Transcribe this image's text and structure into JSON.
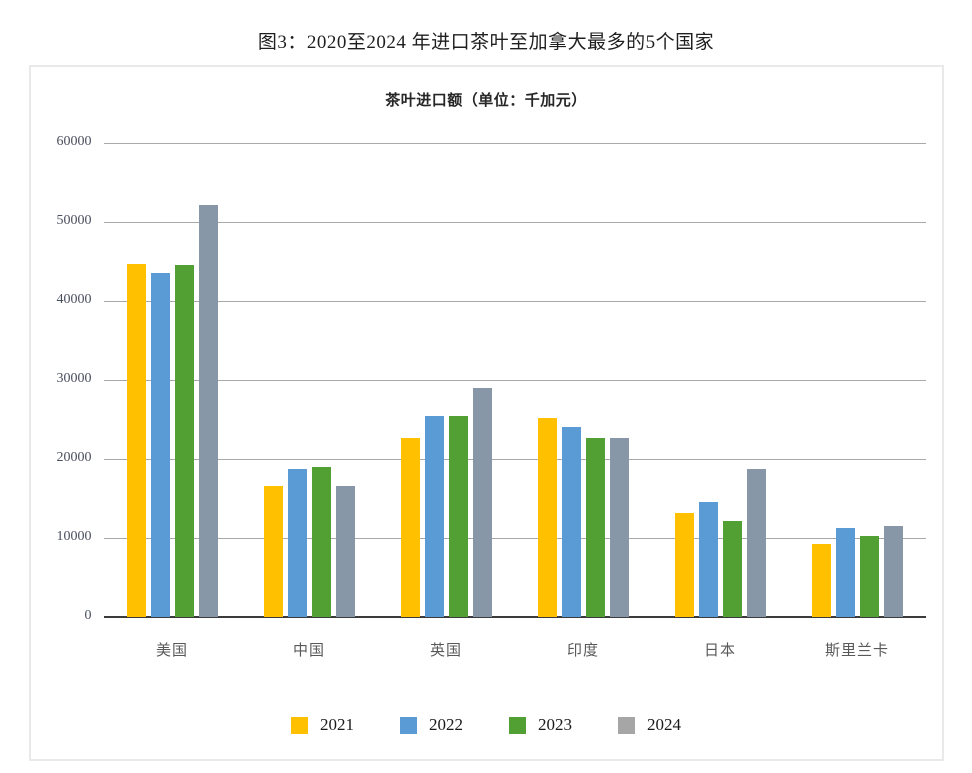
{
  "figure_title": "图3：2020至2024 年进口茶叶至加拿大最多的5个国家",
  "chart_data": {
    "type": "bar",
    "title": "茶叶进口额（单位：千加元）",
    "categories": [
      "美国",
      "中国",
      "英国",
      "印度",
      "日本",
      "斯里兰卡"
    ],
    "series": [
      {
        "name": "2021",
        "color": "#FFC000",
        "legend_color": "#FFC000",
        "values": [
          44700,
          16600,
          22600,
          25200,
          13200,
          9300
        ]
      },
      {
        "name": "2022",
        "color": "#5B9BD5",
        "legend_color": "#5B9BD5",
        "values": [
          43500,
          18700,
          25400,
          24100,
          14600,
          11300
        ]
      },
      {
        "name": "2023",
        "color": "#52A033",
        "legend_color": "#52A033",
        "values": [
          44500,
          19000,
          25500,
          22600,
          12200,
          10200
        ]
      },
      {
        "name": "2024",
        "color": "#8897A8",
        "legend_color": "#A6A6A6",
        "values": [
          52100,
          16600,
          29000,
          22600,
          18700,
          11500
        ]
      }
    ],
    "y_axis": {
      "min": 0,
      "max": 60000,
      "step": 10000,
      "tick_labels": [
        "0",
        "10000",
        "20000",
        "30000",
        "40000",
        "50000",
        "60000"
      ]
    },
    "legend_position": "bottom",
    "grid": true
  }
}
